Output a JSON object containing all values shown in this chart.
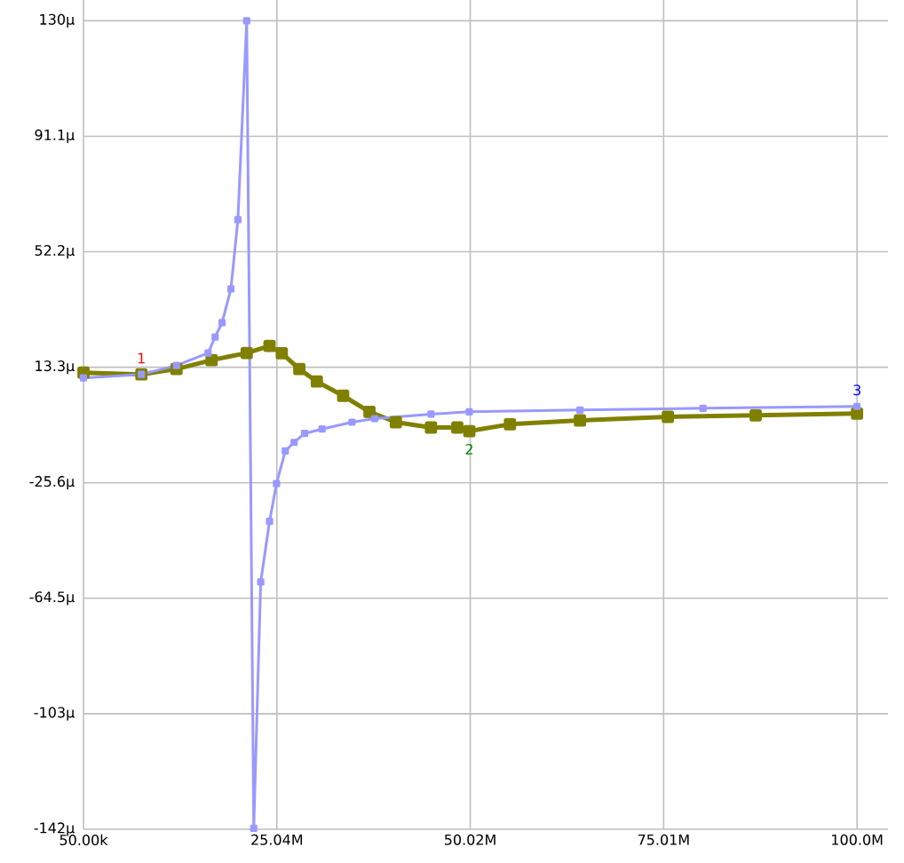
{
  "chart_data": {
    "type": "line",
    "series": [
      {
        "color": "#9999ff",
        "marker": "square",
        "x": [
          50000,
          7530000,
          12070000,
          16150000,
          17060000,
          17960000,
          19100000,
          20000000,
          21140000,
          22050000,
          22950000,
          24090000,
          24990000,
          26130000,
          27260000,
          28620000,
          30890000,
          34740000,
          37690000,
          44950000,
          49900000,
          64200000,
          80100000,
          100000000
        ],
        "values": [
          9.7,
          10.9,
          13.9,
          18.1,
          23.5,
          28.3,
          39.7,
          63,
          130,
          -142,
          -59,
          -38.6,
          -25.9,
          -14.9,
          -12,
          -9,
          -7.5,
          -5.2,
          -4,
          -2.5,
          -1.7,
          -1.1,
          -0.5,
          0.1
        ]
      },
      {
        "color": "#808000",
        "marker": "square",
        "x": [
          50000,
          7530000,
          12070000,
          16600000,
          21140000,
          24090000,
          25670000,
          27940000,
          30200000,
          33600000,
          37000000,
          40410000,
          44950000,
          48350000,
          49900000,
          55150000,
          64200000,
          75560000,
          86900000,
          100000000
        ],
        "values": [
          11.5,
          10.9,
          12.7,
          15.7,
          18.1,
          20.5,
          18,
          12.7,
          8.5,
          3.7,
          -1.7,
          -5.2,
          -7,
          -7,
          -8.2,
          -5.9,
          -4.6,
          -3.4,
          -2.9,
          -2.3
        ]
      }
    ],
    "xlim": [
      50000,
      104000000
    ],
    "xticks": [
      {
        "value": 50000,
        "label": "50.00k"
      },
      {
        "value": 25040000,
        "label": "25.04M"
      },
      {
        "value": 50020000,
        "label": "50.02M"
      },
      {
        "value": 75010000,
        "label": "75.01M"
      },
      {
        "value": 100000000,
        "label": "100.0M"
      }
    ],
    "ylim": [
      -142.3,
      137
    ],
    "yticks": [
      {
        "value": 130,
        "label": "130μ"
      },
      {
        "value": 91.1,
        "label": "91.1μ"
      },
      {
        "value": 52.2,
        "label": "52.2μ"
      },
      {
        "value": 13.3,
        "label": "13.3μ"
      },
      {
        "value": -25.6,
        "label": "-25.6μ"
      },
      {
        "value": -64.5,
        "label": "-64.5μ"
      },
      {
        "value": -103.4,
        "label": "-103μ"
      },
      {
        "value": -142.3,
        "label": "-142μ"
      }
    ],
    "grid": true,
    "annotations": [
      {
        "text": "1",
        "x": 7530000,
        "y": 10.9
      },
      {
        "text": "2",
        "x": 49900000,
        "y": -8.2
      },
      {
        "text": "3",
        "x": 100000000,
        "y": 0.1
      }
    ]
  }
}
